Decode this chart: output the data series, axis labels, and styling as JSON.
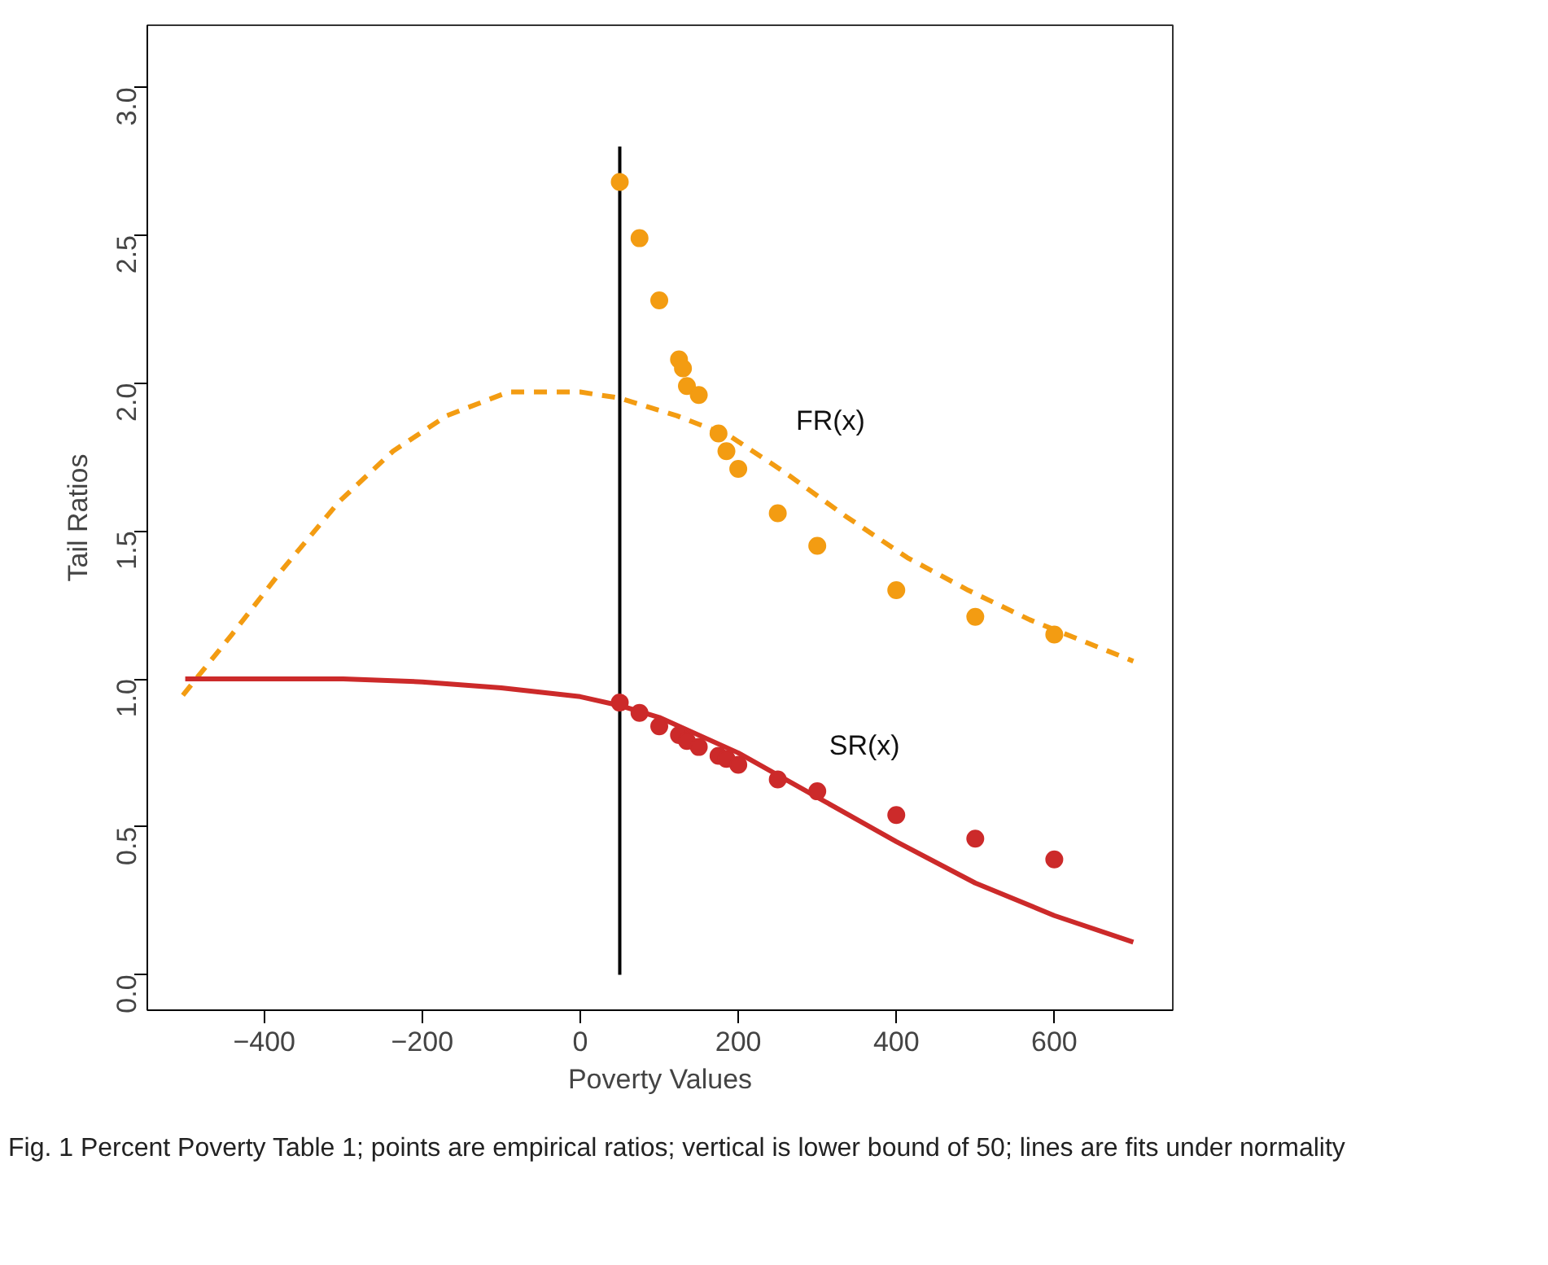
{
  "chart_data": {
    "type": "scatter",
    "xlabel": "Poverty Values",
    "ylabel": "Tail Ratios",
    "xlim": [
      -548,
      750
    ],
    "ylim": [
      -0.12,
      3.21
    ],
    "xticks": [
      -400,
      -200,
      0,
      200,
      400,
      600
    ],
    "yticks": [
      {
        "value": 0,
        "label": "0.0"
      },
      0.5,
      {
        "value": 1,
        "label": "1.0"
      },
      1.5,
      {
        "value": 2,
        "label": "2.0"
      },
      2.5,
      {
        "value": 3,
        "label": "3.0"
      }
    ],
    "grid": false,
    "series": [
      {
        "marker": "circle",
        "color": "#f39c12",
        "x": [
          50,
          75,
          100,
          125,
          130,
          135,
          150,
          175,
          185,
          200,
          250,
          300,
          400,
          500,
          600
        ],
        "values": [
          2.68,
          2.49,
          2.28,
          2.08,
          2.05,
          1.99,
          1.96,
          1.83,
          1.77,
          1.71,
          1.56,
          1.45,
          1.3,
          1.21,
          1.15
        ]
      },
      {
        "marker": "circle",
        "color": "#cc2a2a",
        "x": [
          50,
          75,
          100,
          125,
          135,
          150,
          175,
          185,
          200,
          250,
          300,
          400,
          500,
          600
        ],
        "values": [
          0.92,
          0.885,
          0.84,
          0.81,
          0.79,
          0.77,
          0.74,
          0.73,
          0.71,
          0.66,
          0.62,
          0.54,
          0.46,
          0.39
        ]
      },
      {
        "type": "line",
        "name": "FR(x)",
        "line_style": "dashed",
        "color": "#f39c12",
        "x": [
          -503,
          -441,
          -377,
          -305,
          -237,
          -169,
          -91,
          0,
          49,
          122,
          190,
          258,
          336,
          414,
          491,
          569,
          700
        ],
        "values": [
          0.945,
          1.15,
          1.37,
          1.6,
          1.77,
          1.89,
          1.97,
          1.97,
          1.95,
          1.89,
          1.82,
          1.7,
          1.55,
          1.41,
          1.3,
          1.2,
          1.06
        ]
      },
      {
        "type": "line",
        "name": "SR(x)",
        "line_style": "solid",
        "color": "#cc2a2a",
        "x": [
          -500,
          -300,
          -200,
          -100,
          0,
          50,
          100,
          200,
          300,
          400,
          500,
          600,
          700
        ],
        "values": [
          1.0,
          1.0,
          0.99,
          0.97,
          0.94,
          0.91,
          0.87,
          0.75,
          0.6,
          0.45,
          0.31,
          0.2,
          0.11
        ]
      },
      {
        "type": "line",
        "line_style": "solid",
        "color": "#000000",
        "x": [
          50,
          50
        ],
        "values": [
          0,
          2.8
        ]
      }
    ],
    "annotations": [
      "Fig. 1  Percent Poverty Table 1; points are empirical ratios; vertical is lower bound of 50; lines are fits under normality"
    ]
  }
}
